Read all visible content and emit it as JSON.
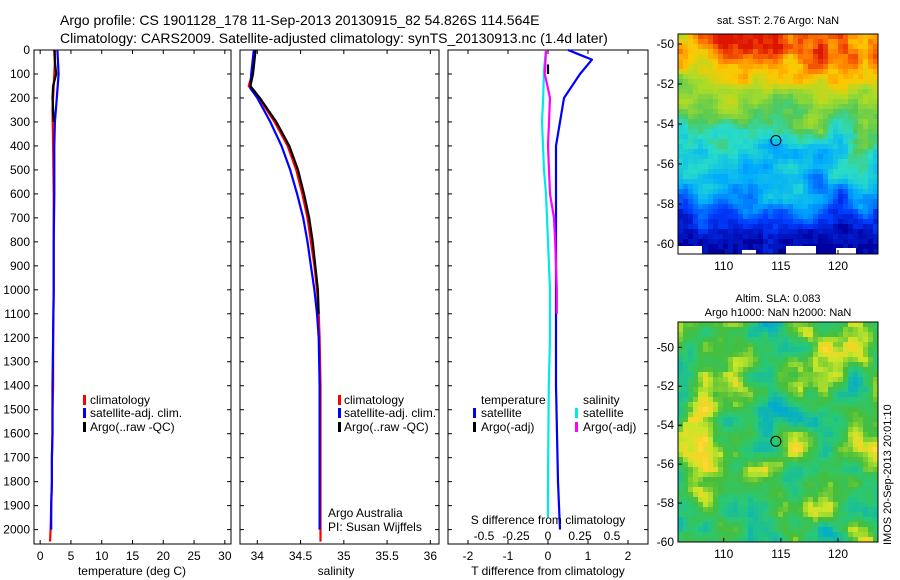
{
  "header": {
    "line1": "Argo profile: CS 1901128_178 11-Sep-2013 20130915_82 54.826S 114.564E",
    "line2": "Climatology: CARS2009. Satellite-adjusted climatology: synTS_20130913.nc (1.4d later)"
  },
  "colors": {
    "climatology": "#ff0000",
    "satellite": "#0000ff",
    "argo": "#000000",
    "sal_satellite": "#00e8e8",
    "sal_argo": "#ff00ff"
  },
  "chart_data": [
    {
      "type": "line",
      "panel": "temperature",
      "xlabel": "temperature (deg C)",
      "ylabel": "",
      "xlim": [
        -1,
        31
      ],
      "ylim": [
        2060,
        0
      ],
      "xticks": [
        0,
        5,
        10,
        15,
        20,
        25,
        30
      ],
      "yticks": [
        0,
        100,
        200,
        300,
        400,
        500,
        600,
        700,
        800,
        900,
        1000,
        1100,
        1200,
        1300,
        1400,
        1500,
        1600,
        1700,
        1800,
        1900,
        2000
      ],
      "legend": [
        "climatology",
        "satellite-adj. clim.",
        "Argo(..raw -QC)"
      ],
      "series": [
        {
          "name": "climatology",
          "color": "#ff0000",
          "x": [
            2.4,
            2.4,
            2.2,
            2.0,
            2.1,
            2.2,
            2.2,
            2.2,
            2.1,
            2.1,
            2.0,
            2.0,
            1.9,
            1.9,
            1.8,
            1.7,
            1.6
          ],
          "y": [
            0,
            50,
            150,
            250,
            400,
            600,
            800,
            1000,
            1200,
            1400,
            1500,
            1600,
            1700,
            1800,
            1900,
            2000,
            2050
          ]
        },
        {
          "name": "satellite-adj. clim.",
          "color": "#0000ff",
          "x": [
            2.8,
            2.9,
            3.0,
            2.7,
            2.4,
            2.3,
            2.3,
            2.2,
            2.2,
            2.1,
            2.0,
            2.0,
            1.9,
            1.9,
            1.8,
            1.8
          ],
          "y": [
            0,
            50,
            100,
            200,
            300,
            400,
            600,
            800,
            1000,
            1200,
            1400,
            1600,
            1700,
            1800,
            1900,
            2000
          ]
        },
        {
          "name": "Argo(..raw -QC)",
          "color": "#000000",
          "x": [
            2.3,
            2.4,
            2.6,
            2.1,
            2.0,
            2.1,
            2.2
          ],
          "y": [
            0,
            50,
            100,
            150,
            200,
            250,
            300
          ]
        }
      ]
    },
    {
      "type": "line",
      "panel": "salinity",
      "xlabel": "salinity",
      "xlim": [
        33.8,
        36.1
      ],
      "xticks": [
        34,
        34.5,
        35,
        35.5,
        36
      ],
      "ylim": [
        2060,
        0
      ],
      "legend": [
        "climatology",
        "satellite-adj. clim.",
        "Argo(..raw -QC)"
      ],
      "series": [
        {
          "name": "climatology",
          "color": "#ff0000",
          "x": [
            33.97,
            33.94,
            33.9,
            34.02,
            34.2,
            34.35,
            34.45,
            34.52,
            34.58,
            34.62,
            34.66,
            34.69,
            34.71,
            34.72,
            34.73,
            34.73,
            34.73
          ],
          "y": [
            0,
            100,
            150,
            200,
            300,
            400,
            500,
            600,
            700,
            800,
            900,
            1000,
            1100,
            1200,
            1400,
            1700,
            2050
          ]
        },
        {
          "name": "satellite-adj. clim.",
          "color": "#0000ff",
          "x": [
            33.96,
            33.93,
            33.92,
            34.0,
            34.15,
            34.28,
            34.38,
            34.46,
            34.53,
            34.58,
            34.62,
            34.66,
            34.69,
            34.71,
            34.72,
            34.72,
            34.72
          ],
          "y": [
            0,
            100,
            160,
            200,
            300,
            400,
            500,
            600,
            700,
            800,
            900,
            1000,
            1100,
            1200,
            1400,
            1700,
            2000
          ]
        },
        {
          "name": "Argo(..raw -QC)",
          "color": "#000000",
          "x": [
            33.98,
            33.95,
            33.92,
            34.03,
            34.22,
            34.37,
            34.47,
            34.54,
            34.6,
            34.64,
            34.67,
            34.7,
            34.71
          ],
          "y": [
            0,
            100,
            150,
            200,
            300,
            400,
            500,
            600,
            700,
            800,
            900,
            1000,
            1100
          ]
        }
      ],
      "annotations": [
        "Argo Australia",
        "PI: Susan Wijffels"
      ]
    },
    {
      "type": "line",
      "panel": "differences",
      "xlabel": "T difference from climatology",
      "xlabel_top": "S difference from climatology",
      "xlim": [
        -2.5,
        2.5
      ],
      "xticks": [
        -2,
        -1,
        0,
        1,
        2
      ],
      "s_xticks": [
        "-0.5",
        "-0.25",
        "0",
        "0.25",
        "0.5"
      ],
      "ylim": [
        2060,
        0
      ],
      "legend_titles": [
        "temperature",
        "salinity"
      ],
      "legend": [
        "satellite",
        "Argo(-adj)",
        "satellite",
        "Argo(-adj)"
      ],
      "series": [
        {
          "name": "satellite",
          "group": "temperature",
          "color": "#0000ff",
          "x": [
            0.5,
            0.8,
            1.1,
            0.8,
            0.4,
            0.3,
            0.2,
            0.2,
            0.2,
            0.2,
            0.2,
            0.25,
            0.3
          ],
          "y": [
            0,
            20,
            40,
            100,
            200,
            300,
            400,
            600,
            800,
            1000,
            1400,
            1800,
            2000
          ]
        },
        {
          "name": "Argo(-adj)",
          "group": "temperature",
          "color": "#000000",
          "x": [
            0.0,
            0.0,
            0.0
          ],
          "y": [
            60,
            80,
            100
          ]
        },
        {
          "name": "satellite",
          "group": "salinity",
          "color": "#00e8e8",
          "x": [
            -0.05,
            -0.1,
            -0.12,
            -0.15,
            -0.1,
            -0.05,
            0.0,
            0.05,
            0.05,
            0.02,
            0.0,
            0.0
          ],
          "y": [
            0,
            80,
            200,
            300,
            500,
            600,
            800,
            1000,
            1200,
            1400,
            1800,
            1950
          ]
        },
        {
          "name": "Argo(-adj)",
          "group": "salinity",
          "color": "#ff00ff",
          "x": [
            -0.05,
            -0.08,
            0.05,
            0.0,
            0.05,
            0.15,
            0.18,
            0.2,
            0.22,
            0.22
          ],
          "y": [
            0,
            100,
            200,
            400,
            600,
            700,
            800,
            900,
            1000,
            1100
          ]
        }
      ]
    },
    {
      "type": "heatmap",
      "panel": "sst_map",
      "title": "sat. SST: 2.76  Argo: NaN",
      "xticks": [
        110,
        115,
        120
      ],
      "yticks": [
        -50,
        -52,
        -54,
        -56,
        -58,
        -60
      ],
      "xlim": [
        106,
        123.5
      ],
      "ylim": [
        -60.5,
        -49.5
      ],
      "marker": {
        "lon": 114.564,
        "lat": -54.826
      }
    },
    {
      "type": "heatmap",
      "panel": "sla_map",
      "title": "Altim. SLA: 0.083",
      "subtitle": "Argo h1000: NaN h2000: NaN",
      "xticks": [
        110,
        115,
        120
      ],
      "yticks": [
        -50,
        -52,
        -54,
        -56,
        -58,
        -60
      ],
      "xlim": [
        106,
        123.5
      ],
      "ylim": [
        -60,
        -48.7
      ],
      "marker": {
        "lon": 114.564,
        "lat": -54.826
      }
    }
  ],
  "side_label": "IMOS 20-Sep-2013 20:01:10"
}
